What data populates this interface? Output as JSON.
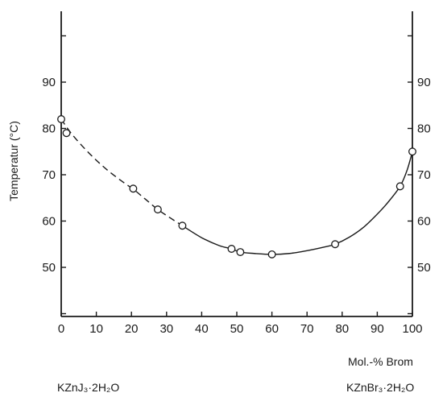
{
  "chart_data": {
    "type": "line",
    "title": "",
    "xlabel": "Mol.-% Brom",
    "ylabel": "Temperatur (°C)",
    "xlim": [
      0,
      100
    ],
    "ylim": [
      35,
      105
    ],
    "x_ticks": [
      0,
      10,
      20,
      30,
      40,
      50,
      60,
      70,
      80,
      90,
      100
    ],
    "y_ticks_labeled": [
      50,
      60,
      70,
      80,
      90
    ],
    "y_ticks_unlabeled": [
      40,
      100
    ],
    "left_end_label": "KZnJ₃·2H₂O",
    "right_end_label": "KZnBr₃·2H₂O",
    "grid": false,
    "series": [
      {
        "x": [
          0,
          1.5,
          20.5,
          27.5,
          34.5,
          48.5,
          51,
          60,
          78,
          96.5,
          100
        ],
        "y": [
          82,
          79,
          67,
          62.5,
          59,
          54,
          53.3,
          52.8,
          55,
          67.5,
          75
        ]
      }
    ],
    "curve": {
      "dashed": {
        "x": [
          0,
          3,
          8,
          13,
          18,
          20.5,
          24,
          27.5,
          31,
          34.5
        ],
        "y": [
          82,
          78.8,
          74.6,
          71.1,
          68.2,
          66.9,
          64.7,
          62.5,
          60.7,
          59
        ]
      },
      "solid": {
        "x": [
          34.5,
          40,
          45,
          48.5,
          51,
          55,
          60,
          65,
          70,
          75,
          78,
          82,
          86,
          90,
          93,
          96.5,
          98.5,
          100
        ],
        "y": [
          59,
          56.4,
          54.7,
          54,
          53.3,
          53,
          52.8,
          53,
          53.6,
          54.4,
          55,
          56.5,
          58.6,
          61.5,
          64,
          67.5,
          71,
          75
        ]
      }
    }
  }
}
